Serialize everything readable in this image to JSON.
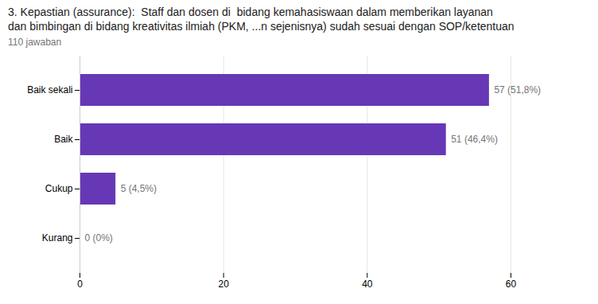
{
  "chart_data": {
    "type": "bar",
    "title": "3. Kepastian (assurance):  Staff dan dosen di  bidang kemahasiswaan dalam memberikan layanan\ndan bimbingan di bidang kreativitas ilmiah (PKM, ...n sejenisnya) sudah sesuai dengan SOP/ketentuan",
    "subtitle": "110 jawaban",
    "categories": [
      "Baik sekali",
      "Baik",
      "Cukup",
      "Kurang"
    ],
    "values": [
      57,
      51,
      5,
      0
    ],
    "value_labels": [
      "57 (51,8%)",
      "51 (46,4%)",
      "5 (4,5%)",
      "0 (0%)"
    ],
    "data_labels": true,
    "color": "#6638b6",
    "orientation": "horizontal",
    "xlim": [
      0,
      60
    ],
    "xticks": [
      0,
      20,
      40,
      60
    ],
    "grid": true
  }
}
